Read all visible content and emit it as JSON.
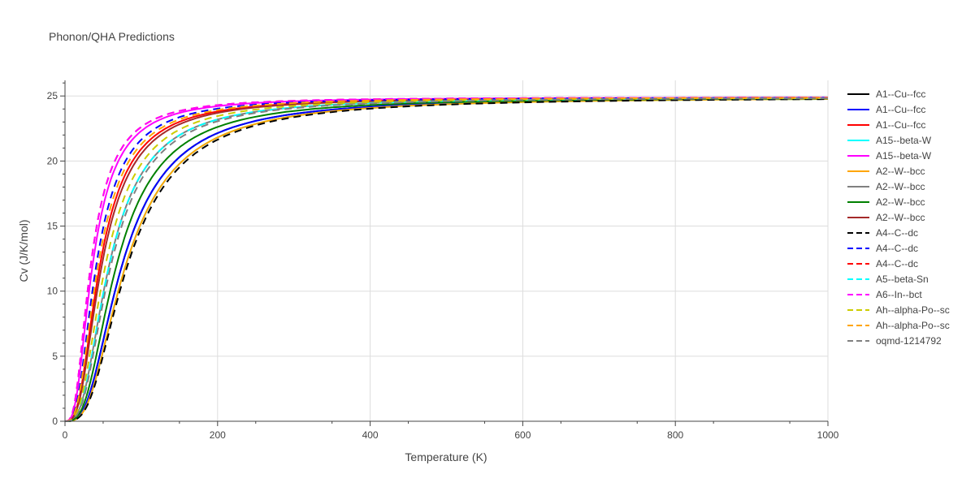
{
  "chart_data": {
    "type": "line",
    "title": "Phonon/QHA Predictions",
    "xlabel": "Temperature (K)",
    "ylabel": "Cv (J/K/mol)",
    "xlim": [
      0,
      1000
    ],
    "ylim": [
      0,
      26.2
    ],
    "x_ticks": [
      0,
      200,
      400,
      600,
      800,
      1000
    ],
    "y_ticks": [
      0,
      5,
      10,
      15,
      20,
      25
    ],
    "grid": true,
    "legend_position": "right",
    "series": [
      {
        "name": "A1--Cu--fcc",
        "color": "#000000",
        "dash": "solid",
        "theta": 310,
        "cv_max": 24.9
      },
      {
        "name": "A1--Cu--fcc",
        "color": "#0000ff",
        "dash": "solid",
        "theta": 310,
        "cv_max": 24.9
      },
      {
        "name": "A1--Cu--fcc",
        "color": "#ff0000",
        "dash": "solid",
        "theta": 190,
        "cv_max": 24.9
      },
      {
        "name": "A15--beta-W",
        "color": "#00ffff",
        "dash": "solid",
        "theta": 330,
        "cv_max": 24.9
      },
      {
        "name": "A15--beta-W",
        "color": "#ff00ff",
        "dash": "solid",
        "theta": 150,
        "cv_max": 24.9
      },
      {
        "name": "A2--W--bcc",
        "color": "#ffa500",
        "dash": "solid",
        "theta": 330,
        "cv_max": 24.9
      },
      {
        "name": "A2--W--bcc",
        "color": "#808080",
        "dash": "solid",
        "theta": 240,
        "cv_max": 24.9
      },
      {
        "name": "A2--W--bcc",
        "color": "#008000",
        "dash": "solid",
        "theta": 280,
        "cv_max": 24.9
      },
      {
        "name": "A2--W--bcc",
        "color": "#a52a2a",
        "dash": "solid",
        "theta": 200,
        "cv_max": 24.9
      },
      {
        "name": "A4--C--dc",
        "color": "#000000",
        "dash": "dash",
        "theta": 340,
        "cv_max": 24.9
      },
      {
        "name": "A4--C--dc",
        "color": "#0000ff",
        "dash": "dash",
        "theta": 170,
        "cv_max": 24.9
      },
      {
        "name": "A4--C--dc",
        "color": "#ff0000",
        "dash": "dash",
        "theta": 140,
        "cv_max": 24.9
      },
      {
        "name": "A5--beta-Sn",
        "color": "#00ffff",
        "dash": "dash",
        "theta": 240,
        "cv_max": 24.9
      },
      {
        "name": "A6--In--bct",
        "color": "#ff00ff",
        "dash": "dash",
        "theta": 140,
        "cv_max": 24.9
      },
      {
        "name": "Ah--alpha-Po--sc",
        "color": "#cccc00",
        "dash": "dash",
        "theta": 220,
        "cv_max": 24.9
      },
      {
        "name": "Ah--alpha-Po--sc",
        "color": "#ffa500",
        "dash": "dash",
        "theta": 180,
        "cv_max": 24.9
      },
      {
        "name": "oqmd-1214792",
        "color": "#808080",
        "dash": "dash",
        "theta": 250,
        "cv_max": 24.9
      }
    ]
  }
}
